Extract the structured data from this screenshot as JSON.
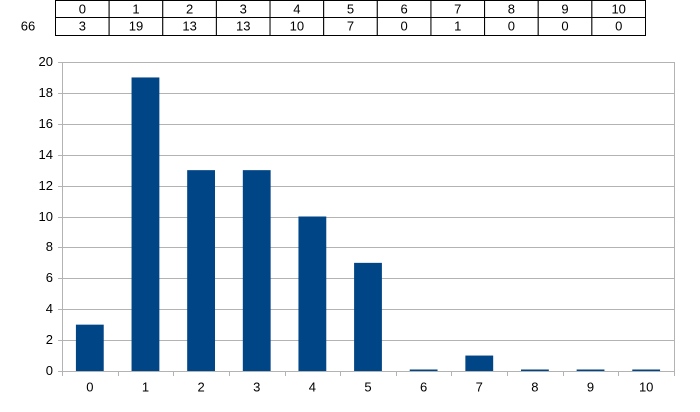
{
  "table": {
    "label": "66"
  },
  "chart_data": {
    "type": "bar",
    "categories": [
      "0",
      "1",
      "2",
      "3",
      "4",
      "5",
      "6",
      "7",
      "8",
      "9",
      "10"
    ],
    "values": [
      3,
      19,
      13,
      13,
      10,
      7,
      0,
      1,
      0,
      0,
      0
    ],
    "color": "#004586",
    "ylim": [
      0,
      20
    ],
    "yticks": [
      0,
      2,
      4,
      6,
      8,
      10,
      12,
      14,
      16,
      18,
      20
    ],
    "grid": true
  }
}
